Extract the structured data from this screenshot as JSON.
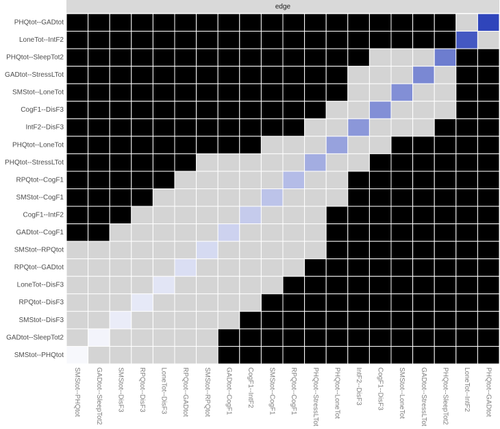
{
  "chart_data": {
    "type": "heatmap",
    "strip": "edge",
    "categories": [
      "PHQtot--GADtot",
      "LoneTot--IntF2",
      "PHQtot--SleepTot2",
      "GADtot--StressLTot",
      "SMStot--LoneTot",
      "CogF1--DisF3",
      "IntF2--DisF3",
      "PHQtot--LoneTot",
      "PHQtot--StressLTot",
      "RPQtot--CogF1",
      "SMStot--CogF1",
      "CogF1--IntF2",
      "GADtot--CogF1",
      "SMStot--RPQtot",
      "RPQtot--GADtot",
      "LoneTot--DisF3",
      "RPQtot--DisF3",
      "SMStot--DisF3",
      "GADtot--SleepTot2",
      "SMStot--PHQtot"
    ],
    "weights": [
      0.5,
      0.45,
      0.35,
      0.32,
      0.3,
      0.3,
      0.28,
      0.25,
      0.22,
      0.18,
      0.16,
      0.14,
      0.12,
      0.1,
      0.09,
      0.07,
      0.06,
      0.05,
      0.03,
      0.02
    ],
    "wlim": [
      0,
      0.5
    ],
    "weight_colors": [
      "#ffffff",
      "#2f45bb"
    ],
    "significant_color": "#000000",
    "nonsignificant_color": "#d4d4d4",
    "significant": [
      [
        1,
        1,
        1,
        1,
        1,
        1,
        1,
        1,
        1,
        1,
        1,
        1,
        1,
        1,
        1,
        1,
        1,
        1,
        0,
        null
      ],
      [
        1,
        1,
        1,
        1,
        1,
        1,
        1,
        1,
        1,
        1,
        1,
        1,
        1,
        1,
        1,
        1,
        1,
        1,
        null,
        0
      ],
      [
        1,
        1,
        1,
        1,
        1,
        1,
        1,
        1,
        1,
        1,
        1,
        1,
        1,
        1,
        0,
        0,
        0,
        null,
        1,
        1
      ],
      [
        1,
        1,
        1,
        1,
        1,
        1,
        1,
        1,
        1,
        1,
        1,
        1,
        1,
        0,
        0,
        0,
        null,
        0,
        1,
        1
      ],
      [
        1,
        1,
        1,
        1,
        1,
        1,
        1,
        1,
        1,
        1,
        1,
        1,
        1,
        0,
        0,
        null,
        0,
        0,
        1,
        1
      ],
      [
        1,
        1,
        1,
        1,
        1,
        1,
        1,
        1,
        1,
        1,
        1,
        1,
        0,
        0,
        null,
        0,
        0,
        0,
        1,
        1
      ],
      [
        1,
        1,
        1,
        1,
        1,
        1,
        1,
        1,
        1,
        1,
        1,
        0,
        0,
        null,
        0,
        0,
        0,
        1,
        1,
        1
      ],
      [
        1,
        1,
        1,
        1,
        1,
        1,
        1,
        1,
        1,
        0,
        0,
        0,
        null,
        0,
        0,
        1,
        1,
        1,
        1,
        1
      ],
      [
        1,
        1,
        1,
        1,
        1,
        1,
        0,
        0,
        0,
        0,
        0,
        null,
        0,
        0,
        1,
        1,
        1,
        1,
        1,
        1
      ],
      [
        1,
        1,
        1,
        1,
        1,
        0,
        0,
        0,
        0,
        0,
        null,
        0,
        0,
        1,
        1,
        1,
        1,
        1,
        1,
        1
      ],
      [
        1,
        1,
        1,
        1,
        0,
        0,
        0,
        0,
        0,
        null,
        0,
        0,
        0,
        1,
        1,
        1,
        1,
        1,
        1,
        1
      ],
      [
        1,
        1,
        1,
        0,
        0,
        0,
        0,
        0,
        null,
        0,
        0,
        0,
        1,
        1,
        1,
        1,
        1,
        1,
        1,
        1
      ],
      [
        1,
        1,
        0,
        0,
        0,
        0,
        0,
        null,
        0,
        0,
        0,
        0,
        1,
        1,
        1,
        1,
        1,
        1,
        1,
        1
      ],
      [
        0,
        0,
        0,
        0,
        0,
        0,
        null,
        0,
        0,
        0,
        0,
        0,
        1,
        1,
        1,
        1,
        1,
        1,
        1,
        1
      ],
      [
        0,
        0,
        0,
        0,
        0,
        null,
        0,
        0,
        0,
        0,
        0,
        1,
        1,
        1,
        1,
        1,
        1,
        1,
        1,
        1
      ],
      [
        0,
        0,
        0,
        0,
        null,
        0,
        0,
        0,
        0,
        0,
        1,
        1,
        1,
        1,
        1,
        1,
        1,
        1,
        1,
        1
      ],
      [
        0,
        0,
        0,
        null,
        0,
        0,
        0,
        0,
        0,
        1,
        1,
        1,
        1,
        1,
        1,
        1,
        1,
        1,
        1,
        1
      ],
      [
        0,
        0,
        null,
        0,
        0,
        0,
        0,
        0,
        1,
        1,
        1,
        1,
        1,
        1,
        1,
        1,
        1,
        1,
        1,
        1
      ],
      [
        0,
        null,
        0,
        0,
        0,
        0,
        0,
        1,
        1,
        1,
        1,
        1,
        1,
        1,
        1,
        1,
        1,
        1,
        1,
        1
      ],
      [
        null,
        0,
        0,
        0,
        0,
        0,
        0,
        1,
        1,
        1,
        1,
        1,
        1,
        1,
        1,
        1,
        1,
        1,
        1,
        1
      ]
    ]
  }
}
